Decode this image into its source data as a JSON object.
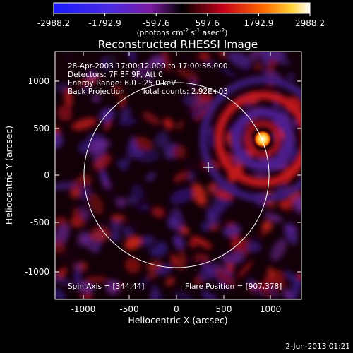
{
  "title": "Reconstructed RHESSI Image",
  "colorbar": {
    "ticks": [
      "-2988.2",
      "-1792.9",
      "-597.6",
      "597.6",
      "1792.9",
      "2988.2"
    ],
    "units_line": "(photons cm",
    "units_exp1": "-2",
    "units_mid": " s",
    "units_exp2": "-1",
    "units_end": " asec",
    "units_exp3": "-2",
    "units_close": ")"
  },
  "annotations": {
    "time": "28-Apr-2003 17:00:12.000 to 17:00:36.000",
    "detectors": "Detectors: 7F 8F 9F, Att 0",
    "energy": "Energy Range: 6.0 - 25.0 keV",
    "method": "Back Projection",
    "counts": "Total counts: 2.92E+03",
    "spin_axis": "Spin Axis = [344,44]",
    "flare_position": "Flare Position = [907,378]"
  },
  "axes": {
    "xlabel": "Heliocentric X (arcsec)",
    "ylabel": "Heliocentric Y (arcsec)",
    "xticks": [
      "-1000",
      "-500",
      "0",
      "500",
      "1000"
    ],
    "yticks": [
      "1000",
      "500",
      "0",
      "-500",
      "-1000"
    ]
  },
  "footer": {
    "date": "2-Jun-2013 01:21"
  },
  "colors": {
    "background": "#000000",
    "accent_hot": "#ffffff",
    "cold": "#5a2a9a",
    "warm": "#d11a1a"
  }
}
